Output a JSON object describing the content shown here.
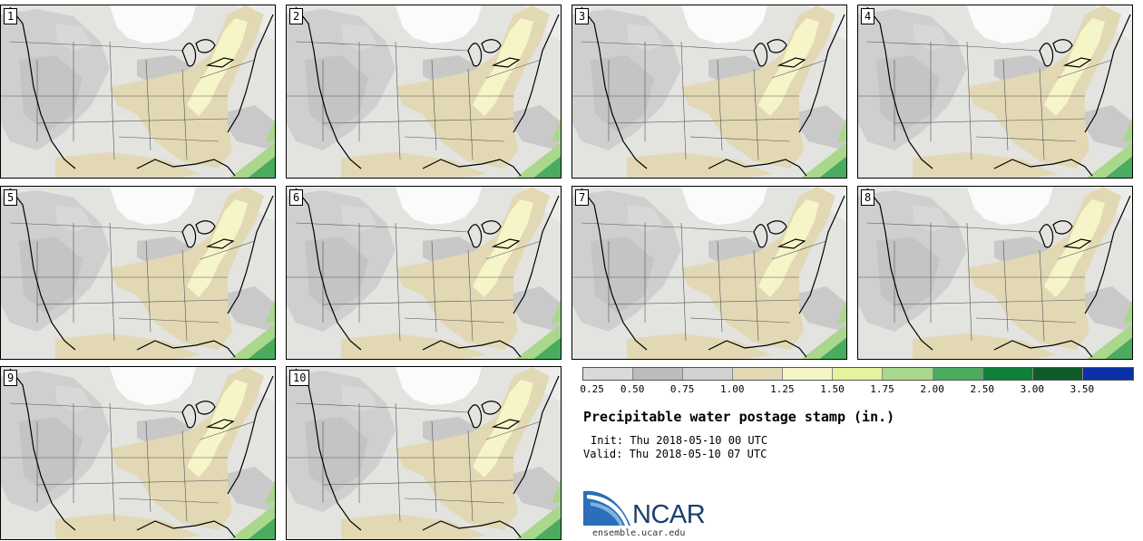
{
  "panels": [
    {
      "label": "1"
    },
    {
      "label": "2"
    },
    {
      "label": "3"
    },
    {
      "label": "4"
    },
    {
      "label": "5"
    },
    {
      "label": "6"
    },
    {
      "label": "7"
    },
    {
      "label": "8"
    },
    {
      "label": "9"
    },
    {
      "label": "10"
    }
  ],
  "colorbar": {
    "colors": [
      "#d9d9d9",
      "#bcbcbc",
      "#d2d2d2",
      "#e2d8b4",
      "#f6f5c8",
      "#e6f29c",
      "#a9d88c",
      "#4bab5e",
      "#11803b",
      "#0f5c2a",
      "#0a2fa6"
    ],
    "ticks": [
      "0.25",
      "0.50",
      "0.75",
      "1.00",
      "1.25",
      "1.50",
      "1.75",
      "2.00",
      "2.50",
      "3.00",
      "3.50"
    ]
  },
  "title": "Precipitable water postage stamp (in.)",
  "init_text": "Init: Thu 2018-05-10 00 UTC",
  "valid_text": "Valid: Thu 2018-05-10 07 UTC",
  "logo": {
    "text": "NCAR",
    "site": "ensemble.ucar.edu"
  }
}
